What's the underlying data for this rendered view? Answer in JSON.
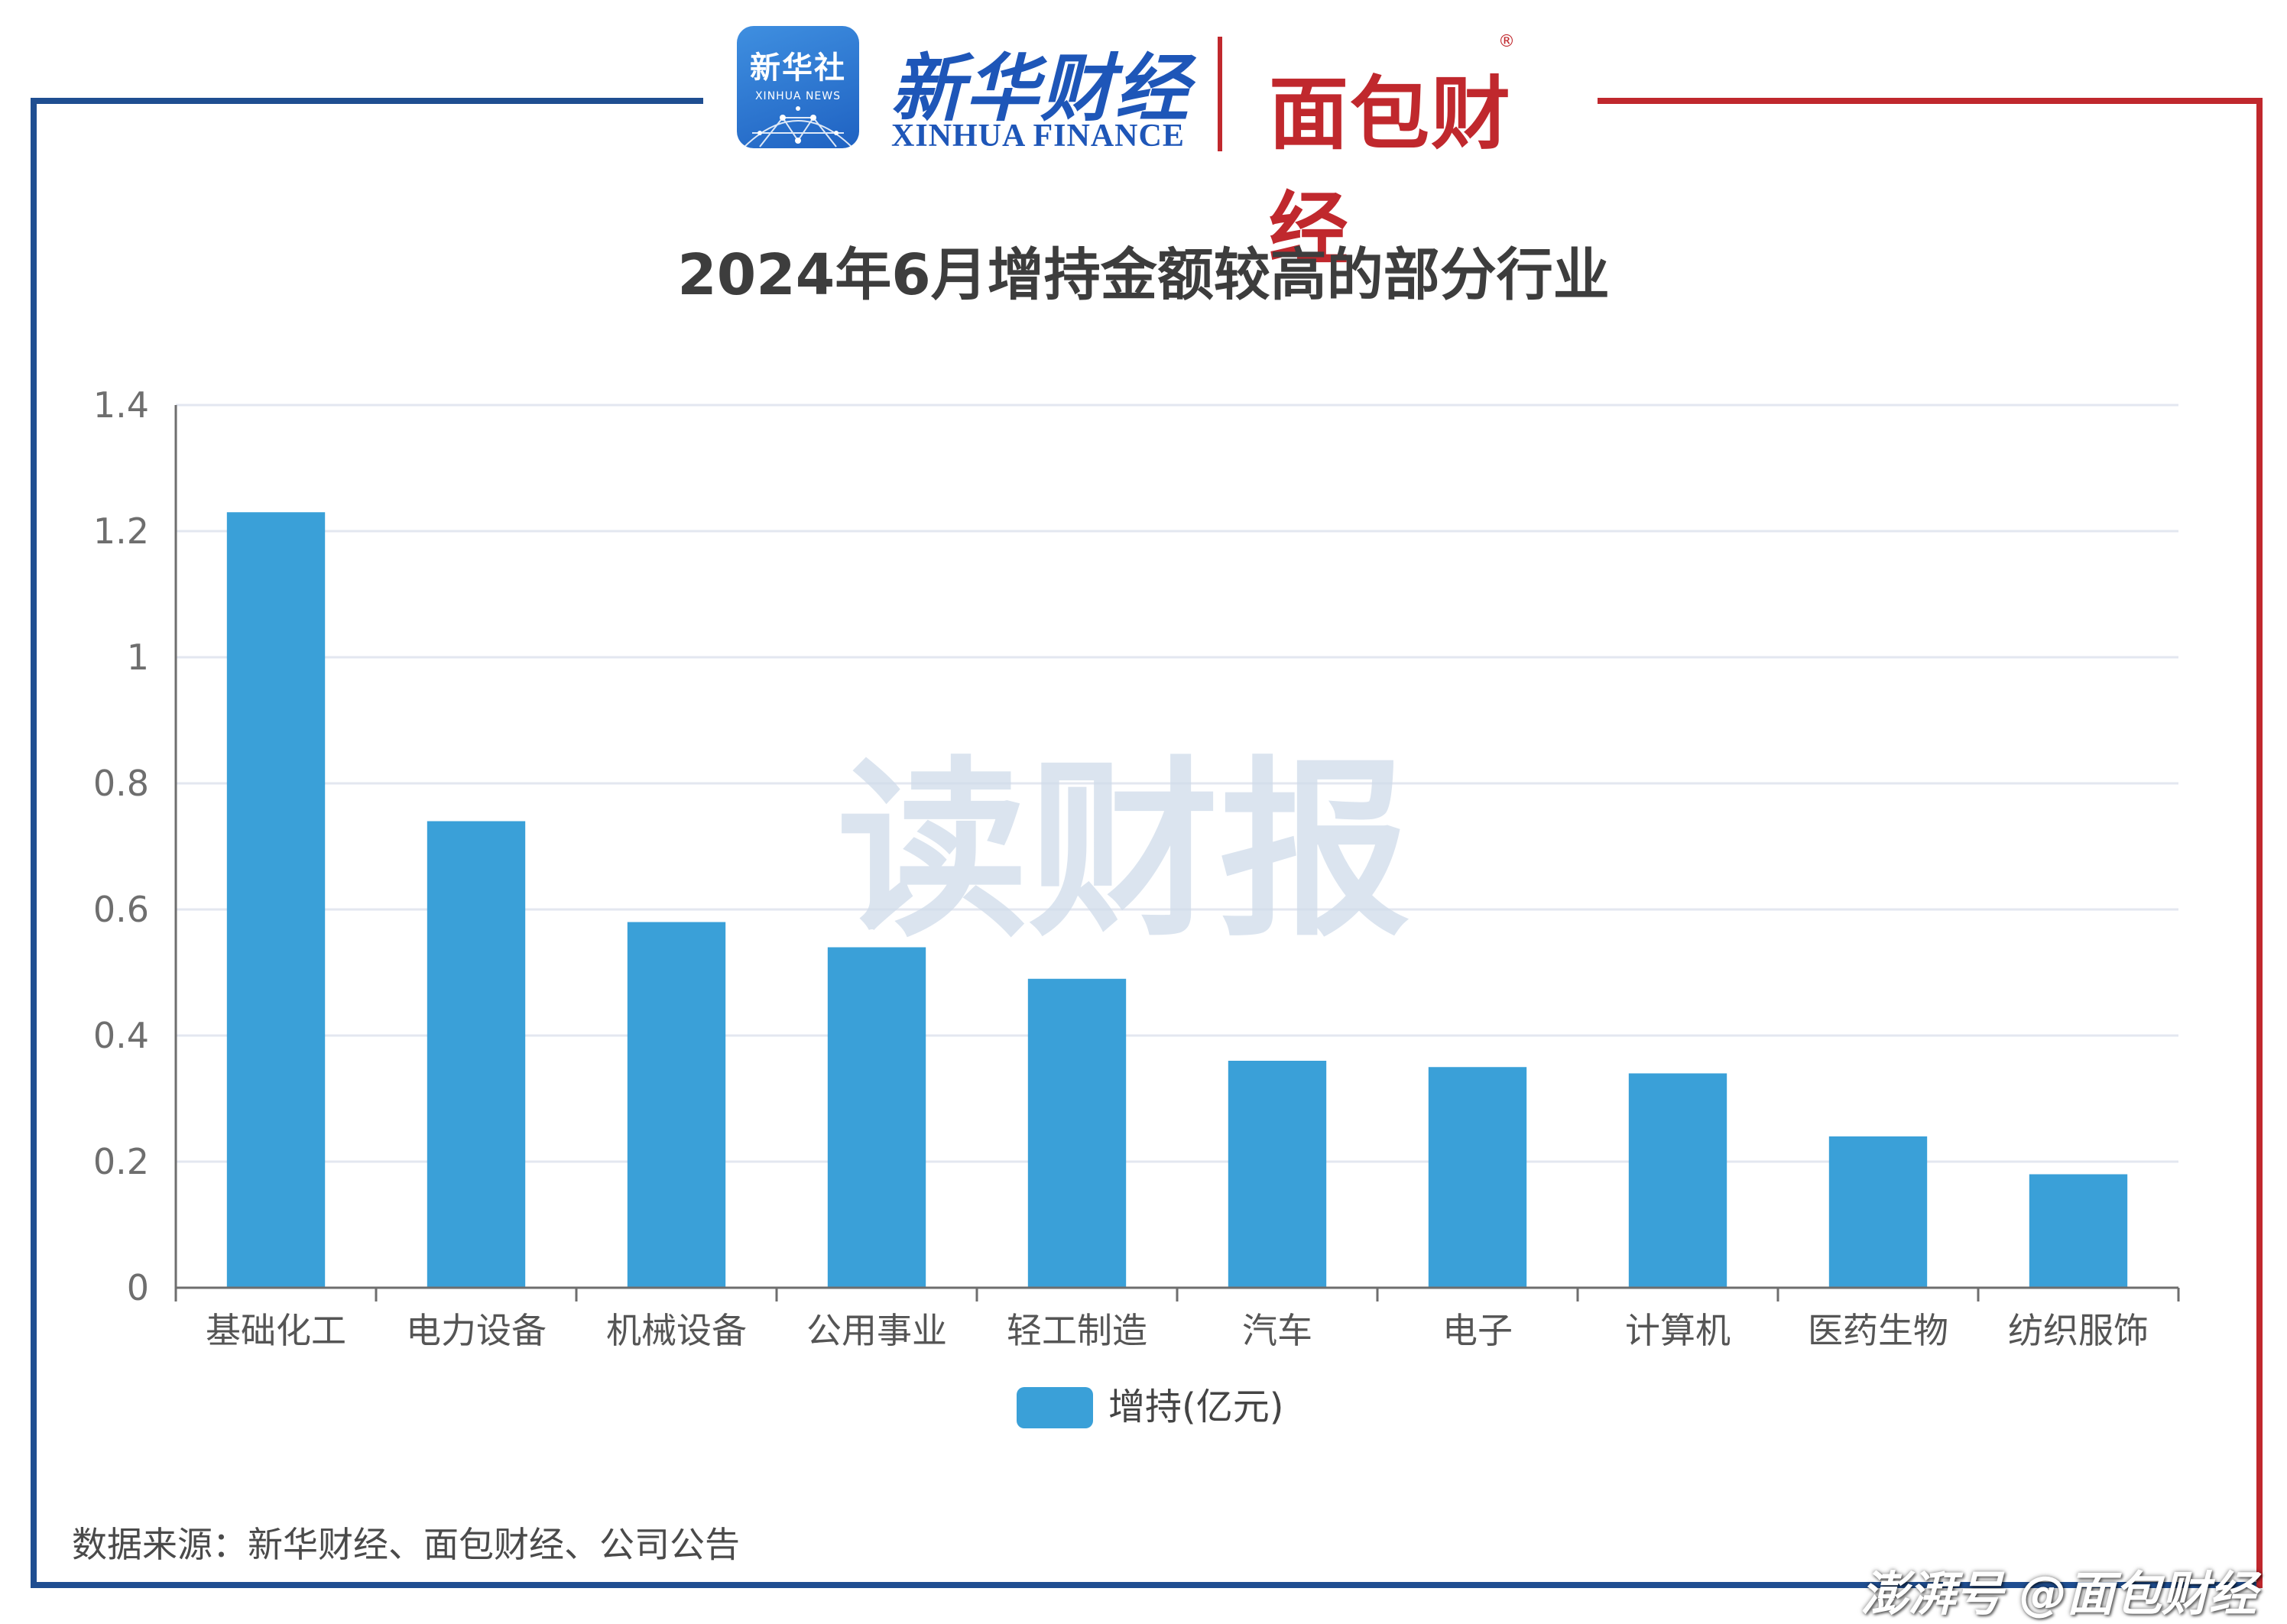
{
  "header": {
    "xinhua_badge_cn": "新华社",
    "xinhua_badge_en": "XINHUA NEWS",
    "xinhua_finance_cn": "新华财经",
    "xinhua_finance_en": "XINHUA FINANCE",
    "mianbao_logo": "面包财经",
    "registered_mark": "®"
  },
  "watermark": "读财报",
  "source": "数据来源：新华财经、面包财经、公司公告",
  "footer_mark": "澎湃号 @面包财经",
  "colors": {
    "bar": "#3aa0d8",
    "frame_blue": "#1f4e91",
    "frame_red": "#c0282d",
    "grid": "#e3e7f0"
  },
  "chart_data": {
    "type": "bar",
    "title": "2024年6月增持金额较高的部分行业",
    "categories": [
      "基础化工",
      "电力设备",
      "机械设备",
      "公用事业",
      "轻工制造",
      "汽车",
      "电子",
      "计算机",
      "医药生物",
      "纺织服饰"
    ],
    "series": [
      {
        "name": "增持(亿元)",
        "values": [
          1.23,
          0.74,
          0.58,
          0.54,
          0.49,
          0.36,
          0.35,
          0.34,
          0.24,
          0.18
        ]
      }
    ],
    "yticks": [
      "0",
      "0.2",
      "0.4",
      "0.6",
      "0.8",
      "1",
      "1.2",
      "1.4"
    ],
    "ylim": [
      0,
      1.4
    ],
    "grid": true,
    "legend_position": "bottom-center"
  }
}
